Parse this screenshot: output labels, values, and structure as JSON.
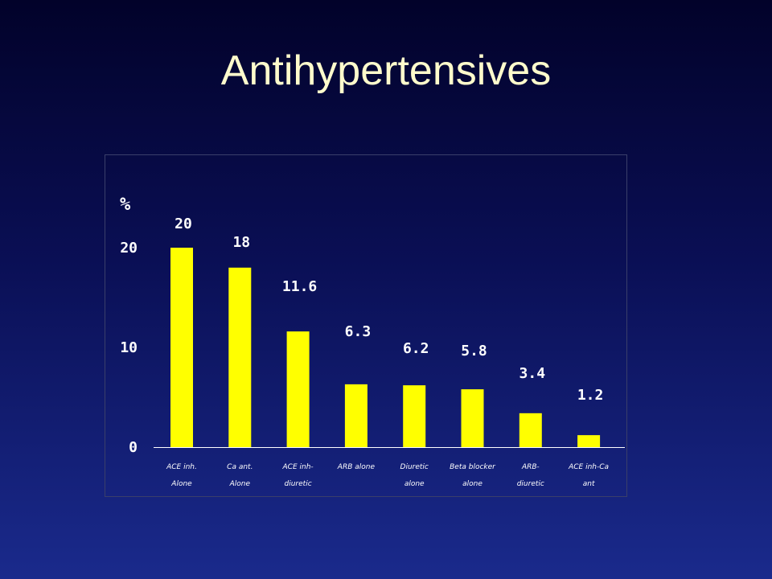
{
  "slide": {
    "title": "Antihypertensives"
  },
  "colors": {
    "bar": "#ffff00",
    "text": "#ffffff",
    "title": "#fffbcc",
    "background_top": "#02022a",
    "background_bottom": "#1a2a8c"
  },
  "chart_data": {
    "type": "bar",
    "title": "",
    "xlabel": "",
    "ylabel": "%",
    "ylim": [
      0,
      20
    ],
    "yticks": [
      0,
      10,
      20
    ],
    "grid": false,
    "legend": false,
    "categories": [
      [
        "ACE inh.",
        "Alone"
      ],
      [
        "Ca ant.",
        "Alone"
      ],
      [
        "ACE inh-",
        "diuretic"
      ],
      [
        "ARB alone"
      ],
      [
        "Diuretic",
        "alone"
      ],
      [
        "Beta blocker",
        "alone"
      ],
      [
        "ARB-",
        "diuretic"
      ],
      [
        "ACE inh-Ca",
        "ant"
      ]
    ],
    "values": [
      20,
      18,
      11.6,
      6.3,
      6.2,
      5.8,
      3.4,
      1.2
    ],
    "data_labels": [
      "20",
      "18",
      "11.6",
      "6.3",
      "6.2",
      "5.8",
      "3.4",
      "1.2"
    ]
  }
}
